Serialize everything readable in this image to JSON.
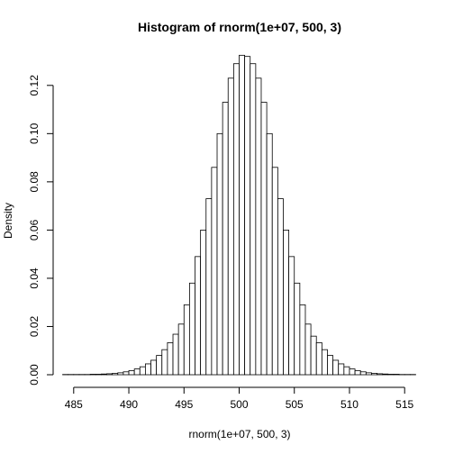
{
  "chart_data": {
    "type": "bar",
    "title": "Histogram of rnorm(1e+07, 500, 3)",
    "xlabel": "rnorm(1e+07, 500, 3)",
    "ylabel": "Density",
    "xlim": [
      484.2,
      515.8
    ],
    "ylim": [
      0,
      0.133
    ],
    "x_ticks": [
      "485",
      "490",
      "495",
      "500",
      "505",
      "510",
      "515"
    ],
    "y_ticks": [
      "0.00",
      "0.02",
      "0.04",
      "0.06",
      "0.08",
      "0.10",
      "0.12"
    ],
    "bin_width": 0.5,
    "bin_start": 484,
    "values": [
      0.0001,
      0.0001,
      0.0001,
      0.0001,
      0.0001,
      0.0002,
      0.0002,
      0.0003,
      0.0004,
      0.0006,
      0.0008,
      0.0012,
      0.0017,
      0.0024,
      0.0033,
      0.0045,
      0.006,
      0.008,
      0.0104,
      0.0133,
      0.0168,
      0.021,
      0.029,
      0.038,
      0.049,
      0.06,
      0.073,
      0.086,
      0.1,
      0.113,
      0.123,
      0.129,
      0.1325,
      0.132,
      0.129,
      0.123,
      0.113,
      0.1,
      0.086,
      0.073,
      0.06,
      0.049,
      0.038,
      0.029,
      0.021,
      0.016,
      0.0133,
      0.0104,
      0.008,
      0.006,
      0.0045,
      0.0033,
      0.0024,
      0.0017,
      0.0012,
      0.0008,
      0.0006,
      0.0004,
      0.0003,
      0.0002,
      0.0002,
      0.0001,
      0.0001,
      0.0001
    ],
    "grid": false,
    "legend": "none"
  }
}
